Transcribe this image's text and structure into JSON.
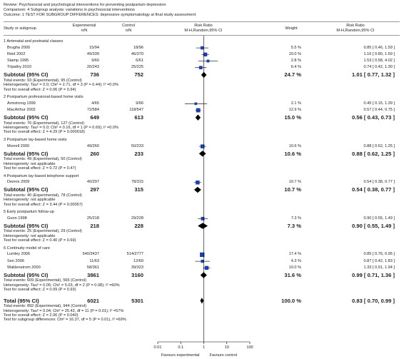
{
  "header": {
    "review": "Review:   Psychosocial and psychological interventions for preventing postpartum depression",
    "comparison": "Comparison:   4 Subgroup analysis: variations in psychosocial interventions",
    "outcome": "Outcome:   1 TEST FOR SUBGROUP DIFFERENCES: depressive symptomatology at final study assessment"
  },
  "columns": {
    "study": "Study or subgroup",
    "exp1": "Experimental",
    "exp2": "n/N",
    "ctl1": "Control",
    "ctl2": "n/N",
    "rr1": "Risk Ratio",
    "rr2": "M-H,Random,95% CI",
    "weight": "Weight",
    "rrr1": "Risk Ratio",
    "rrr2": "M-H,Random,95% CI"
  },
  "chart_data": {
    "type": "forest",
    "scale": "log",
    "xlim": [
      0.01,
      100
    ],
    "ticks": [
      "0.01",
      "0.1",
      "1",
      "10",
      "100"
    ],
    "favours_left": "Favours experimental",
    "favours_right": "Favours control",
    "groups": [
      {
        "title": "1 Antenatal and postnatal classes",
        "studies": [
          {
            "name": "Brugha 2000",
            "exp": "15/94",
            "ctl": "18/96",
            "weight": "5.5 %",
            "ci_text": "0.85 [ 0.46, 1.59 ]",
            "rr": 0.85,
            "lo": 0.46,
            "hi": 1.59,
            "w": 5.5
          },
          {
            "name": "Reid 2002",
            "exp": "49/339",
            "ctl": "46/370",
            "weight": "10.0 %",
            "ci_text": "1.16 [ 0.80, 1.69 ]",
            "rr": 1.16,
            "lo": 0.8,
            "hi": 1.69,
            "w": 10.0
          },
          {
            "name": "Stamp 1995",
            "exp": "9/60",
            "ctl": "6/61",
            "weight": "2.8 %",
            "ci_text": "1.53 [ 0.58, 4.02 ]",
            "rr": 1.53,
            "lo": 0.58,
            "hi": 4.02,
            "w": 2.8
          },
          {
            "name": "Tripathy 2010",
            "exp": "20/243",
            "ctl": "25/225",
            "weight": "6.4 %",
            "ci_text": "0.74 [ 0.42, 1.30 ]",
            "rr": 0.74,
            "lo": 0.42,
            "hi": 1.3,
            "w": 6.4
          }
        ],
        "subtotal": {
          "label": "Subtotal (95% CI)",
          "exp": "736",
          "ctl": "752",
          "weight": "24.7 %",
          "ci_text": "1.01 [ 0.77, 1.32 ]",
          "rr": 1.01,
          "lo": 0.77,
          "hi": 1.32
        },
        "notes": [
          "Total events: 93 (Experimental), 95 (Control)",
          "Heterogeneity: Tau² = 0.0; Chi² = 2.71, df = 3 (P = 0.44); I² =0.0%",
          "Test for overall effect: Z = 0.06 (P = 0.94)"
        ]
      },
      {
        "title": "2 Postpartum professional-based home visits",
        "studies": [
          {
            "name": "Armstrong 1999",
            "exp": "4/65",
            "ctl": "9/66",
            "weight": "2.1 %",
            "ci_text": "0.45 [ 0.15, 1.39 ]",
            "rr": 0.45,
            "lo": 0.15,
            "hi": 1.39,
            "w": 2.1
          },
          {
            "name": "MacArthur 2002",
            "exp": "72/584",
            "ctl": "118/547",
            "weight": "12.9 %",
            "ci_text": "0.57 [ 0.44, 0.75 ]",
            "rr": 0.57,
            "lo": 0.44,
            "hi": 0.75,
            "w": 12.9
          }
        ],
        "subtotal": {
          "label": "Subtotal (95% CI)",
          "exp": "649",
          "ctl": "613",
          "weight": "15.0 %",
          "ci_text": "0.56 [ 0.43, 0.73 ]",
          "rr": 0.56,
          "lo": 0.43,
          "hi": 0.73
        },
        "notes": [
          "Total events: 76 (Experimental), 127 (Control)",
          "Heterogeneity: Tau² = 0.0; Chi² = 0.16, df = 1 (P = 0.69); I² =0.0%",
          "Test for overall effect: Z = 4.29 (P = 0.000018)"
        ]
      },
      {
        "title": "3 Postpartum lay-based home visits",
        "studies": [
          {
            "name": "Morrell 2000",
            "exp": "49/260",
            "ctl": "50/233",
            "weight": "10.6 %",
            "ci_text": "0.88 [ 0.62, 1.25 ]",
            "rr": 0.88,
            "lo": 0.62,
            "hi": 1.25,
            "w": 10.6
          }
        ],
        "subtotal": {
          "label": "Subtotal (95% CI)",
          "exp": "260",
          "ctl": "233",
          "weight": "10.6 %",
          "ci_text": "0.88 [ 0.62, 1.25 ]",
          "rr": 0.88,
          "lo": 0.62,
          "hi": 1.25
        },
        "notes": [
          "Total events: 49 (Experimental), 50 (Control)",
          "Heterogeneity: not applicable",
          "Test for overall effect: Z = 0.72 (P = 0.47)"
        ]
      },
      {
        "title": "4 Postpartum lay-based telephone support",
        "studies": [
          {
            "name": "Dennis 2009",
            "exp": "40/297",
            "ctl": "78/315",
            "weight": "10.7 %",
            "ci_text": "0.54 [ 0.38, 0.77 ]",
            "rr": 0.54,
            "lo": 0.38,
            "hi": 0.77,
            "w": 10.7
          }
        ],
        "subtotal": {
          "label": "Subtotal (95% CI)",
          "exp": "297",
          "ctl": "315",
          "weight": "10.7 %",
          "ci_text": "0.54 [ 0.38, 0.77 ]",
          "rr": 0.54,
          "lo": 0.38,
          "hi": 0.77
        },
        "notes": [
          "Total events: 40 (Experimental), 78 (Control)",
          "Heterogeneity: not applicable",
          "Test for overall effect: Z = 3.44 (P = 0.00057)"
        ]
      },
      {
        "title": "5 Early postpartum follow-up",
        "studies": [
          {
            "name": "Gunn 1998",
            "exp": "25/218",
            "ctl": "29/228",
            "weight": "7.3 %",
            "ci_text": "0.90 [ 0.55, 1.49 ]",
            "rr": 0.9,
            "lo": 0.55,
            "hi": 1.49,
            "w": 7.3
          }
        ],
        "subtotal": {
          "label": "Subtotal (95% CI)",
          "exp": "218",
          "ctl": "228",
          "weight": "7.3 %",
          "ci_text": "0.90 [ 0.55, 1.49 ]",
          "rr": 0.9,
          "lo": 0.55,
          "hi": 1.49
        },
        "notes": [
          "Total events: 25 (Experimental), 29 (Control)",
          "Heterogeneity: not applicable",
          "Test for overall effect: Z = 0.40 (P = 0.69)"
        ]
      },
      {
        "title": "6 Continuity model of care",
        "studies": [
          {
            "name": "Lumley 2006",
            "exp": "540/3437",
            "ctl": "514/2777",
            "weight": "17.4 %",
            "ci_text": "0.85 [ 0.76, 0.95 ]",
            "rr": 0.85,
            "lo": 0.76,
            "hi": 0.95,
            "w": 17.4
          },
          {
            "name": "Sen 2006",
            "exp": "11/63",
            "ctl": "12/60",
            "weight": "4.3 %",
            "ci_text": "0.87 [ 0.42, 1.83 ]",
            "rr": 0.87,
            "lo": 0.42,
            "hi": 1.83,
            "w": 4.3
          },
          {
            "name": "Waldenstrom 2000",
            "exp": "58/361",
            "ctl": "39/323",
            "weight": "10.0 %",
            "ci_text": "1.33 [ 0.91, 1.94 ]",
            "rr": 1.33,
            "lo": 0.91,
            "hi": 1.94,
            "w": 10.0
          }
        ],
        "subtotal": {
          "label": "Subtotal (95% CI)",
          "exp": "3861",
          "ctl": "3160",
          "weight": "31.6 %",
          "ci_text": "0.99 [ 0.71, 1.36 ]",
          "rr": 0.99,
          "lo": 0.71,
          "hi": 1.36
        },
        "notes": [
          "Total events: 609 (Experimental), 565 (Control)",
          "Heterogeneity: Tau² = 0.05; Chi² = 5.03, df = 2 (P = 0.08); I² =60%",
          "Test for overall effect: Z = 0.09 (P = 0.93)"
        ]
      }
    ],
    "total": {
      "label": "Total (95% CI)",
      "exp": "6021",
      "ctl": "5301",
      "weight": "100.0 %",
      "ci_text": "0.83 [ 0.70, 0.99 ]",
      "rr": 0.83,
      "lo": 0.7,
      "hi": 0.99
    },
    "total_notes": [
      "Total events: 892 (Experimental), 944 (Control)",
      "Heterogeneity: Tau² = 0.04; Chi² = 25.42, df = 11 (P = 0.01); I² =57%",
      "Test for overall effect: Z = 2.06 (P = 0.040)",
      "Test for subgroup differences: Chi² = 16.37, df = 5 (P = 0.01), I² =69%"
    ]
  }
}
